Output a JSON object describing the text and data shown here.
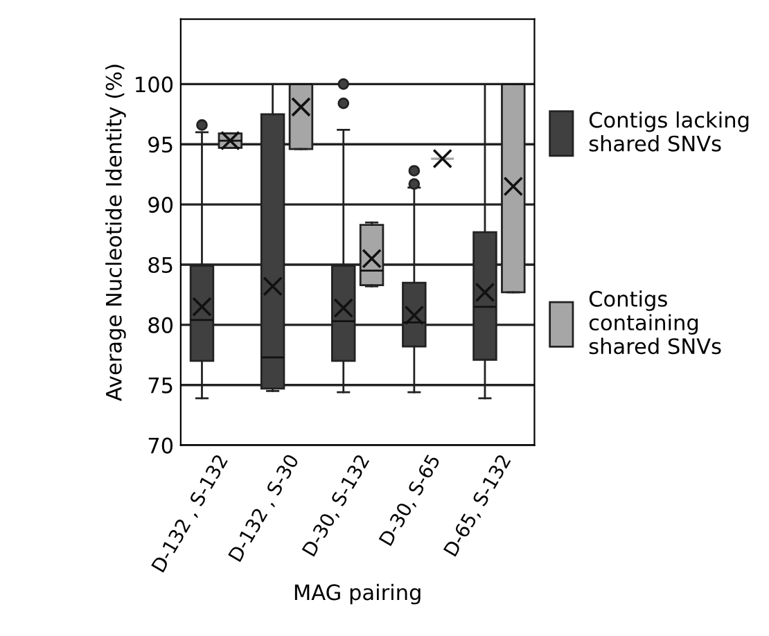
{
  "chart_data": {
    "type": "box",
    "xlabel": "MAG pairing",
    "ylabel": "Average Nucleotide Identity (%)",
    "categories": [
      "D-132 , S-132",
      "D-132 , S-30",
      "D-30, S-132",
      "D-30, S-65",
      "D-65, S-132"
    ],
    "ylim": [
      70,
      105.4
    ],
    "yticks": [
      70,
      75,
      80,
      85,
      90,
      95,
      100
    ],
    "grid": "y",
    "legend": "right",
    "series": [
      {
        "name": "Contigs lacking shared SNVs",
        "color": "#404040",
        "boxes": [
          {
            "low": 73.9,
            "q1": 77.0,
            "median": 80.4,
            "q3": 84.9,
            "high": 96.0,
            "mean": 81.5,
            "outliers": [
              96.6
            ]
          },
          {
            "low": 74.5,
            "q1": 74.7,
            "median": 77.3,
            "q3": 97.5,
            "high": 100,
            "mean": 83.2
          },
          {
            "low": 74.4,
            "q1": 77.0,
            "median": 80.3,
            "q3": 84.9,
            "high": 96.2,
            "mean": 81.4,
            "outliers": [
              100,
              98.4
            ]
          },
          {
            "low": 74.4,
            "q1": 78.2,
            "median": 80.2,
            "q3": 83.5,
            "high": 91.4,
            "mean": 80.8,
            "outliers": [
              92.8,
              91.7
            ]
          },
          {
            "low": 73.9,
            "q1": 77.1,
            "median": 81.5,
            "q3": 87.7,
            "high": 100,
            "mean": 82.7
          }
        ]
      },
      {
        "name": "Contigs containing shared SNVs",
        "color": "#a6a6a6",
        "boxes": [
          {
            "low": 94.7,
            "q1": 94.7,
            "median": 95.3,
            "q3": 95.9,
            "high": 95.9,
            "mean": 95.3
          },
          {
            "low": 94.6,
            "q1": 94.6,
            "median": 100,
            "q3": 100,
            "high": 100,
            "mean": 98.1
          },
          {
            "low": 83.2,
            "q1": 83.3,
            "median": 84.5,
            "q3": 88.3,
            "high": 88.5,
            "mean": 85.5
          },
          {
            "low": 93.8,
            "q1": 93.8,
            "median": 93.8,
            "q3": 93.8,
            "high": 93.8,
            "mean": 93.8
          },
          {
            "low": 82.7,
            "q1": 82.7,
            "median": 100,
            "q3": 100,
            "high": 100,
            "mean": 91.5
          }
        ]
      }
    ]
  }
}
